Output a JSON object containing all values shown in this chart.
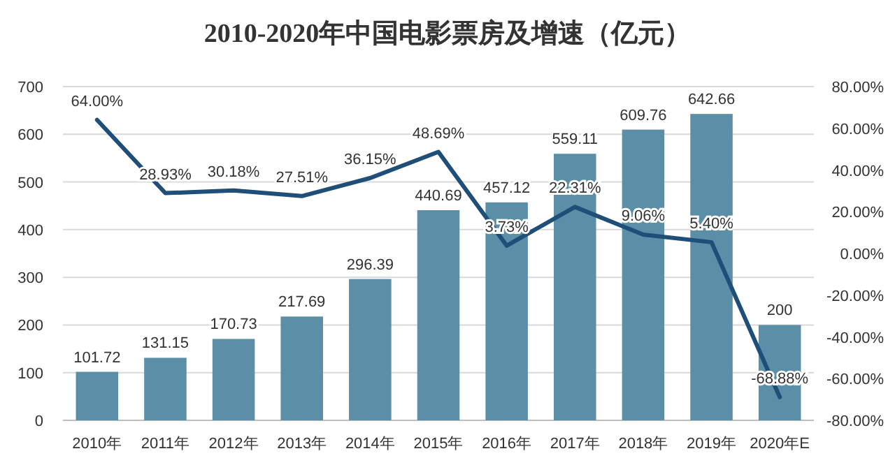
{
  "chart_data": {
    "type": "bar",
    "title": "2010-2020年中国电影票房及增速（亿元）",
    "categories": [
      "2010年",
      "2011年",
      "2012年",
      "2013年",
      "2014年",
      "2015年",
      "2016年",
      "2017年",
      "2018年",
      "2019年",
      "2020年E"
    ],
    "series": [
      {
        "color": "#5b8fa8",
        "values": [
          101.72,
          131.15,
          170.73,
          217.69,
          296.39,
          440.69,
          457.12,
          559.11,
          609.76,
          642.66,
          200
        ],
        "value_labels": [
          "101.72",
          "131.15",
          "170.73",
          "217.69",
          "296.39",
          "440.69",
          "457.12",
          "559.11",
          "609.76",
          "642.66",
          "200"
        ]
      },
      {
        "type": "line",
        "axis": "y2",
        "color": "#1f4e79",
        "values": [
          64.0,
          28.93,
          30.18,
          27.51,
          36.15,
          48.69,
          3.73,
          22.31,
          9.06,
          5.4,
          -68.88
        ],
        "value_labels": [
          "64.00%",
          "28.93%",
          "30.18%",
          "27.51%",
          "36.15%",
          "48.69%",
          "3.73%",
          "22.31%",
          "9.06%",
          "5.40%",
          "-68.88%"
        ]
      }
    ],
    "ylim": [
      0,
      700
    ],
    "yticks": [
      0,
      100,
      200,
      300,
      400,
      500,
      600,
      700
    ],
    "y2lim": [
      -80,
      80
    ],
    "y2ticks": [
      {
        "value": -80,
        "label": "-80.00%"
      },
      {
        "value": -60,
        "label": "-60.00%"
      },
      {
        "value": -40,
        "label": "-40.00%"
      },
      {
        "value": -20,
        "label": "-20.00%"
      },
      {
        "value": 0,
        "label": "0.00%"
      },
      {
        "value": 20,
        "label": "20.00%"
      },
      {
        "value": 40,
        "label": "40.00%"
      },
      {
        "value": 60,
        "label": "60.00%"
      },
      {
        "value": 80,
        "label": "80.00%"
      }
    ],
    "grid": "y"
  }
}
